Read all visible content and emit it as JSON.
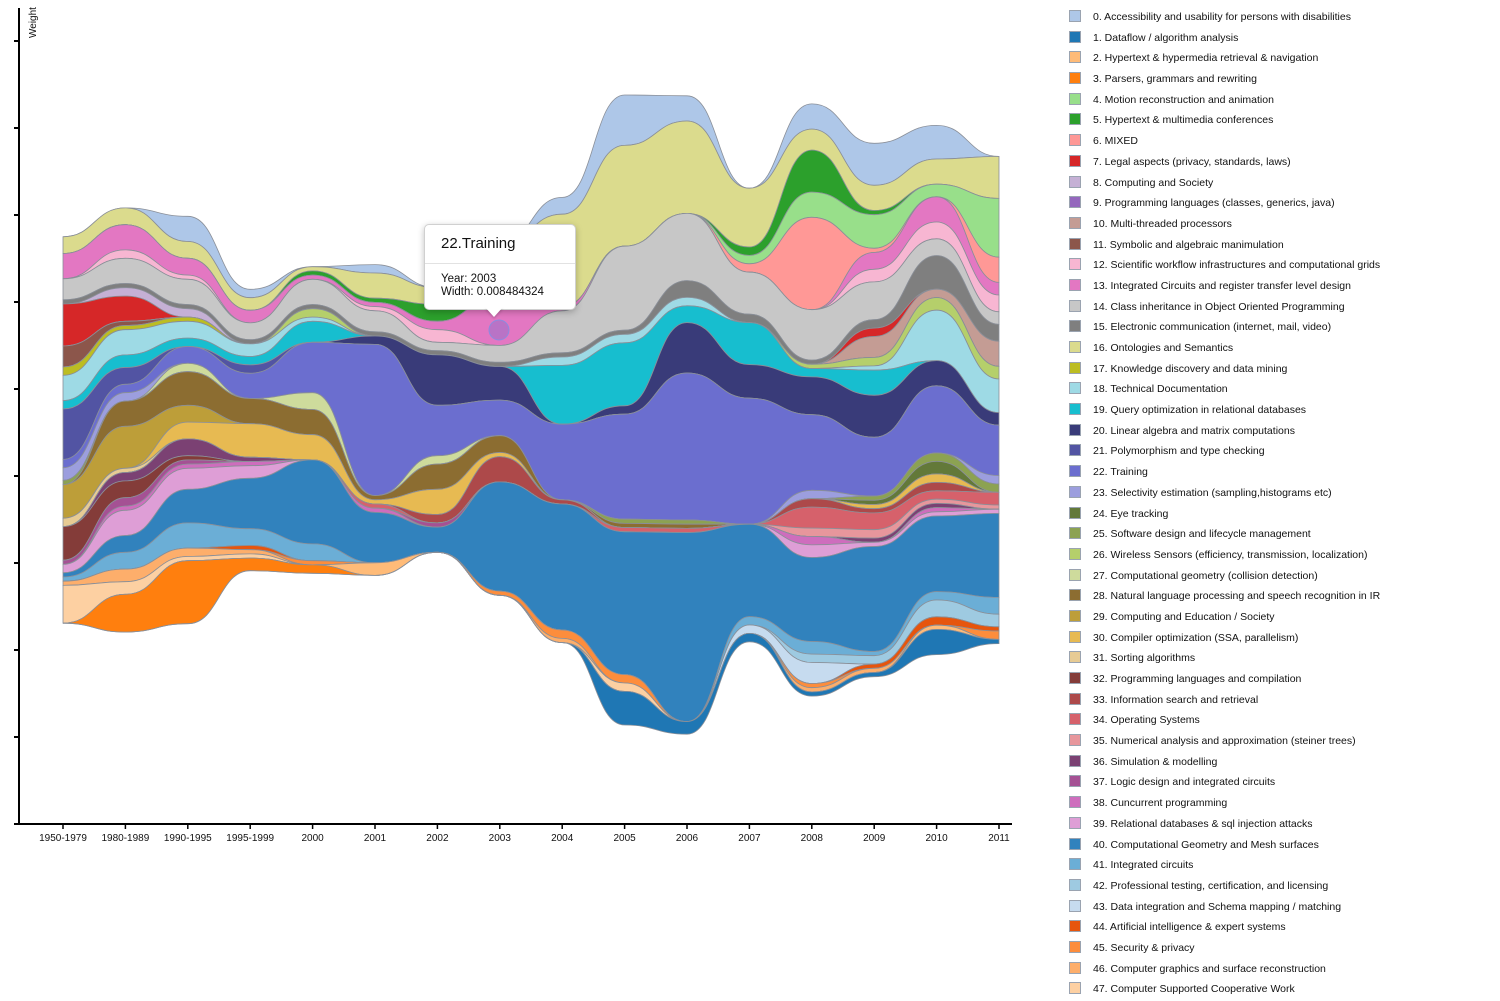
{
  "chart_data": {
    "type": "area",
    "subtype": "streamgraph",
    "ylabel": "Weight",
    "x": [
      "1950-1979",
      "1980-1989",
      "1990-1995",
      "1995-1999",
      "2000",
      "2001",
      "2002",
      "2003",
      "2004",
      "2005",
      "2006",
      "2007",
      "2008",
      "2009",
      "2010",
      "2011"
    ],
    "legend_position": "right",
    "layer_order": [
      "0",
      "16",
      "5",
      "4",
      "6",
      "13",
      "12",
      "14",
      "15",
      "8",
      "7",
      "10",
      "11",
      "9",
      "17",
      "26",
      "18",
      "19",
      "20",
      "21",
      "22",
      "23",
      "27",
      "25",
      "24",
      "28",
      "29",
      "30",
      "31",
      "33",
      "34",
      "35",
      "36",
      "32",
      "37",
      "38",
      "39",
      "40",
      "41",
      "42",
      "43",
      "44",
      "45",
      "46",
      "47",
      "2",
      "3",
      "1"
    ],
    "series": [
      {
        "id": "0",
        "name": "0. Accessibility and usability for persons with disabilities",
        "color": "#aec7e8",
        "values": [
          0,
          0,
          0.006,
          0.002,
          0,
          0.002,
          0,
          0,
          0.004,
          0.012,
          0.006,
          0,
          0.006,
          0.01,
          0.008,
          0
        ]
      },
      {
        "id": "1",
        "name": "1. Dataflow / algorithm analysis",
        "color": "#1f77b4",
        "values": [
          0,
          0,
          0,
          0,
          0,
          0,
          0,
          0,
          0,
          0.008,
          0.003,
          0.002,
          0.001,
          0.001,
          0.006,
          0.001
        ]
      },
      {
        "id": "2",
        "name": "2. Hypertext & hypermedia retrieval & navigation",
        "color": "#ffbb78",
        "values": [
          0,
          0,
          0,
          0,
          0,
          0.003,
          0,
          0,
          0,
          0,
          0,
          0,
          0,
          0,
          0.001,
          0
        ]
      },
      {
        "id": "3",
        "name": "3. Parsers, grammars and rewriting",
        "color": "#ff7f0e",
        "values": [
          0,
          0.009,
          0.015,
          0.003,
          0.002,
          0,
          0,
          0,
          0,
          0,
          0,
          0,
          0,
          0,
          0,
          0
        ]
      },
      {
        "id": "4",
        "name": "4. Motion reconstruction and animation",
        "color": "#98df8a",
        "values": [
          0,
          0,
          0,
          0,
          0,
          0,
          0,
          0,
          0,
          0,
          0,
          0.002,
          0.006,
          0.008,
          0.003,
          0.014
        ]
      },
      {
        "id": "5",
        "name": "5. Hypertext & multimedia conferences",
        "color": "#2ca02c",
        "values": [
          0,
          0,
          0,
          0,
          0.001,
          0.001,
          0.004,
          0,
          0,
          0,
          0,
          0.002,
          0.01,
          0.001,
          0,
          0
        ]
      },
      {
        "id": "6",
        "name": "6. MIXED",
        "color": "#ff9896",
        "values": [
          0,
          0,
          0,
          0,
          0,
          0,
          0,
          0,
          0,
          0,
          0,
          0.002,
          0.022,
          0.001,
          0,
          0.006
        ]
      },
      {
        "id": "7",
        "name": "7. Legal aspects (privacy, standards, laws)",
        "color": "#d62728",
        "values": [
          0.01,
          0.006,
          0,
          0,
          0,
          0,
          0,
          0,
          0,
          0,
          0,
          0,
          0,
          0.002,
          0,
          0
        ]
      },
      {
        "id": "8",
        "name": "8. Computing and Society",
        "color": "#c5b0d5",
        "values": [
          0,
          0.002,
          0.002,
          0,
          0,
          0,
          0,
          0,
          0,
          0,
          0,
          0,
          0,
          0,
          0,
          0
        ]
      },
      {
        "id": "9",
        "name": "9. Programming languages (classes, generics, java)",
        "color": "#9467bd",
        "values": [
          0,
          0,
          0,
          0,
          0,
          0,
          0,
          0,
          0,
          0,
          0,
          0,
          0,
          0,
          0,
          0
        ]
      },
      {
        "id": "10",
        "name": "10. Multi-threaded processors",
        "color": "#c49c94",
        "values": [
          0,
          0,
          0,
          0,
          0,
          0,
          0,
          0,
          0,
          0,
          0,
          0,
          0,
          0.005,
          0.002,
          0.006
        ]
      },
      {
        "id": "11",
        "name": "11. Symbolic and algebraic manimulation",
        "color": "#8c564b",
        "values": [
          0.005,
          0.001,
          0,
          0,
          0,
          0,
          0,
          0,
          0,
          0,
          0,
          0,
          0,
          0,
          0,
          0
        ]
      },
      {
        "id": "12",
        "name": "12. Scientific workflow infrastructures and computational grids",
        "color": "#f7b6d2",
        "values": [
          0,
          0.002,
          0.001,
          0,
          0,
          0.001,
          0.003,
          0,
          0,
          0,
          0,
          0,
          0,
          0.003,
          0.004,
          0.004
        ]
      },
      {
        "id": "13",
        "name": "13. Integrated Circuits and register transfer level design",
        "color": "#e377c2",
        "values": [
          0.006,
          0.006,
          0.004,
          0.003,
          0.001,
          0.001,
          0.002,
          0.012,
          0.001,
          0,
          0,
          0,
          0,
          0.004,
          0.006,
          0.003
        ]
      },
      {
        "id": "14",
        "name": "14. Class inheritance in Object Oriented Programming",
        "color": "#c7c7c7",
        "values": [
          0.005,
          0.006,
          0.006,
          0.004,
          0.006,
          0.005,
          0.002,
          0.004,
          0.01,
          0.02,
          0.016,
          0.01,
          0.012,
          0.009,
          0.004,
          0.003
        ]
      },
      {
        "id": "15",
        "name": "15. Electronic communication (internet, mail, video)",
        "color": "#7f7f7f",
        "values": [
          0.001,
          0.001,
          0.001,
          0.001,
          0.001,
          0.001,
          0.001,
          0.001,
          0.001,
          0.001,
          0.004,
          0.002,
          0.001,
          0.002,
          0.008,
          0.004
        ]
      },
      {
        "id": "16",
        "name": "16. Ontologies and Semantics",
        "color": "#dbdb8d",
        "values": [
          0.004,
          0.004,
          0.004,
          0.003,
          0.001,
          0.006,
          0.004,
          0.012,
          0.022,
          0.024,
          0.022,
          0.014,
          0.005,
          0.006,
          0.006,
          0.01
        ]
      },
      {
        "id": "17",
        "name": "17. Knowledge discovery and data mining",
        "color": "#bcbd22",
        "values": [
          0.002,
          0.001,
          0.001,
          0,
          0,
          0,
          0,
          0,
          0,
          0,
          0,
          0,
          0,
          0,
          0,
          0
        ]
      },
      {
        "id": "18",
        "name": "18. Technical Documentation",
        "color": "#9edae5",
        "values": [
          0.006,
          0.006,
          0.004,
          0.003,
          0.001,
          0,
          0,
          0,
          0.002,
          0.002,
          0.002,
          0,
          0,
          0.001,
          0.012,
          0.008
        ]
      },
      {
        "id": "19",
        "name": "19. Query optimization in relational databases",
        "color": "#17becf",
        "values": [
          0.002,
          0.003,
          0.002,
          0.002,
          0.005,
          0,
          0,
          0,
          0.014,
          0.015,
          0.004,
          0.01,
          0.002,
          0.006,
          0,
          0
        ]
      },
      {
        "id": "20",
        "name": "20. Linear algebra and matrix computations",
        "color": "#393b79",
        "values": [
          0,
          0,
          0,
          0,
          0,
          0.002,
          0.012,
          0.008,
          0,
          0.002,
          0.012,
          0.008,
          0.009,
          0.01,
          0.006,
          0.003
        ]
      },
      {
        "id": "21",
        "name": "21. Polymorphism and type checking",
        "color": "#5254a3",
        "values": [
          0.012,
          0.004,
          0,
          0.002,
          0,
          0,
          0,
          0,
          0,
          0,
          0,
          0,
          0,
          0,
          0,
          0
        ]
      },
      {
        "id": "22",
        "name": "22. Training",
        "color": "#6b6ecf",
        "values": [
          0.002,
          0.002,
          0.004,
          0.006,
          0.012,
          0.036,
          0.012,
          0.008484324,
          0.018,
          0.025,
          0.035,
          0.03,
          0.018,
          0.014,
          0.016,
          0.012
        ]
      },
      {
        "id": "23",
        "name": "23. Selectivity estimation (sampling,histograms etc)",
        "color": "#9c9ede",
        "values": [
          0.003,
          0.002,
          0,
          0,
          0,
          0,
          0,
          0,
          0,
          0,
          0,
          0,
          0.002,
          0,
          0,
          0.002
        ]
      },
      {
        "id": "24",
        "name": "24. Eye tracking",
        "color": "#637939",
        "values": [
          0,
          0,
          0,
          0,
          0,
          0,
          0,
          0,
          0,
          0,
          0,
          0,
          0,
          0.001,
          0.003,
          0
        ]
      },
      {
        "id": "25",
        "name": "25. Software design and lifecycle management",
        "color": "#8ca252",
        "values": [
          0.001,
          0,
          0,
          0,
          0,
          0,
          0,
          0,
          0,
          0.001,
          0.001,
          0,
          0,
          0.001,
          0.002,
          0.002
        ]
      },
      {
        "id": "26",
        "name": "26. Wireless Sensors (efficiency, transmission, localization)",
        "color": "#b5cf6b",
        "values": [
          0,
          0,
          0,
          0,
          0.002,
          0,
          0,
          0,
          0,
          0,
          0,
          0,
          0.001,
          0.002,
          0.003,
          0.003
        ]
      },
      {
        "id": "27",
        "name": "27. Computational geometry (collision detection)",
        "color": "#cedb9c",
        "values": [
          0,
          0,
          0.002,
          0,
          0.004,
          0,
          0.002,
          0,
          0,
          0,
          0,
          0,
          0,
          0,
          0,
          0
        ]
      },
      {
        "id": "28",
        "name": "28. Natural language processing and speech recognition in IR",
        "color": "#8c6d31",
        "values": [
          0,
          0.006,
          0.008,
          0.006,
          0.006,
          0.001,
          0.006,
          0.004,
          0,
          0.001,
          0.001,
          0,
          0,
          0,
          0,
          0
        ]
      },
      {
        "id": "29",
        "name": "29. Computing and Education / Society",
        "color": "#bd9e39",
        "values": [
          0.008,
          0.01,
          0.004,
          0,
          0,
          0,
          0,
          0,
          0,
          0,
          0,
          0,
          0,
          0,
          0,
          0
        ]
      },
      {
        "id": "30",
        "name": "30. Compiler optimization (SSA, parallelism)",
        "color": "#e7ba52",
        "values": [
          0,
          0,
          0.004,
          0.008,
          0.006,
          0.001,
          0.006,
          0.001,
          0,
          0,
          0,
          0,
          0,
          0.001,
          0.002,
          0
        ]
      },
      {
        "id": "31",
        "name": "31. Sorting algorithms",
        "color": "#e7cb94",
        "values": [
          0.002,
          0.001,
          0,
          0,
          0,
          0,
          0,
          0,
          0,
          0,
          0,
          0,
          0,
          0,
          0,
          0
        ]
      },
      {
        "id": "32",
        "name": "32. Programming languages and compilation",
        "color": "#843c39",
        "values": [
          0.008,
          0.004,
          0.001,
          0,
          0,
          0,
          0,
          0,
          0,
          0,
          0,
          0,
          0,
          0,
          0,
          0
        ]
      },
      {
        "id": "33",
        "name": "33. Information search and retrieval",
        "color": "#ad494a",
        "values": [
          0,
          0,
          0,
          0,
          0,
          0,
          0.002,
          0.006,
          0.001,
          0,
          0,
          0,
          0.002,
          0.001,
          0.002,
          0
        ]
      },
      {
        "id": "34",
        "name": "34. Operating Systems",
        "color": "#d6616b",
        "values": [
          0,
          0,
          0,
          0,
          0,
          0.001,
          0,
          0,
          0,
          0.001,
          0.001,
          0,
          0.005,
          0.004,
          0.002,
          0.003
        ]
      },
      {
        "id": "35",
        "name": "35. Numerical analysis and approximation (steiner trees)",
        "color": "#e7969c",
        "values": [
          0,
          0,
          0,
          0,
          0,
          0,
          0,
          0,
          0,
          0,
          0,
          0,
          0.002,
          0.002,
          0.001,
          0.001
        ]
      },
      {
        "id": "36",
        "name": "36. Simulation & modelling",
        "color": "#7b4173",
        "values": [
          0,
          0.002,
          0.004,
          0.001,
          0,
          0,
          0,
          0,
          0,
          0,
          0,
          0,
          0,
          0.001,
          0.001,
          0
        ]
      },
      {
        "id": "37",
        "name": "37. Logic design and integrated circuits",
        "color": "#a55194",
        "values": [
          0.001,
          0.002,
          0.001,
          0,
          0,
          0,
          0.001,
          0,
          0,
          0,
          0,
          0,
          0,
          0,
          0,
          0
        ]
      },
      {
        "id": "38",
        "name": "38. Cuncurrent programming",
        "color": "#ce6dbd",
        "values": [
          0,
          0.001,
          0.001,
          0.001,
          0,
          0.001,
          0,
          0,
          0,
          0,
          0,
          0,
          0.002,
          0,
          0.001,
          0
        ]
      },
      {
        "id": "39",
        "name": "39. Relational databases & sql injection attacks",
        "color": "#de9ed6",
        "values": [
          0.002,
          0.006,
          0.005,
          0.003,
          0,
          0,
          0,
          0,
          0,
          0,
          0,
          0,
          0.003,
          0.001,
          0.001,
          0.001
        ]
      },
      {
        "id": "40",
        "name": "40. Computational Geometry and Mesh surfaces",
        "color": "#3182bd",
        "values": [
          0.001,
          0.004,
          0.008,
          0.012,
          0.02,
          0.012,
          0.006,
          0.026,
          0.03,
          0.034,
          0.045,
          0.022,
          0.02,
          0.025,
          0.018,
          0.02
        ]
      },
      {
        "id": "41",
        "name": "41. Integrated circuits",
        "color": "#6baed6",
        "values": [
          0.001,
          0.004,
          0.006,
          0.004,
          0.004,
          0,
          0,
          0,
          0,
          0,
          0,
          0.002,
          0.003,
          0.001,
          0.002,
          0.004
        ]
      },
      {
        "id": "42",
        "name": "42. Professional testing, certification, and licensing",
        "color": "#9ecae1",
        "values": [
          0,
          0,
          0,
          0,
          0,
          0,
          0,
          0,
          0,
          0,
          0,
          0,
          0.002,
          0.002,
          0.004,
          0.003
        ]
      },
      {
        "id": "43",
        "name": "43. Data integration and Schema mapping / matching",
        "color": "#c6dbef",
        "values": [
          0,
          0,
          0,
          0,
          0,
          0,
          0,
          0,
          0,
          0,
          0,
          0.002,
          0.005,
          0,
          0,
          0
        ]
      },
      {
        "id": "44",
        "name": "44. Artificial intelligence & expert systems",
        "color": "#e6550d",
        "values": [
          0,
          0,
          0,
          0.001,
          0,
          0,
          0,
          0,
          0,
          0,
          0,
          0,
          0,
          0.001,
          0.002,
          0.001
        ]
      },
      {
        "id": "45",
        "name": "45. Security & privacy",
        "color": "#fd8d3c",
        "values": [
          0,
          0,
          0,
          0,
          0.001,
          0,
          0,
          0.001,
          0.002,
          0.002,
          0,
          0,
          0.001,
          0,
          0,
          0.002
        ]
      },
      {
        "id": "46",
        "name": "46. Computer graphics and surface reconstruction",
        "color": "#fdae6b",
        "values": [
          0.001,
          0.003,
          0.002,
          0.001,
          0,
          0,
          0,
          0,
          0.001,
          0,
          0,
          0,
          0.001,
          0.001,
          0,
          0
        ]
      },
      {
        "id": "47",
        "name": "47. Computer Supported Cooperative Work",
        "color": "#fdd0a2",
        "values": [
          0.009,
          0.003,
          0.001,
          0.001,
          0,
          0,
          0,
          0,
          0,
          0.002,
          0,
          0,
          0,
          0,
          0,
          0
        ]
      }
    ]
  },
  "tooltip": {
    "title": "22.Training",
    "year_text": "Year: 2003",
    "width_text": "Width: 0.008484324"
  }
}
